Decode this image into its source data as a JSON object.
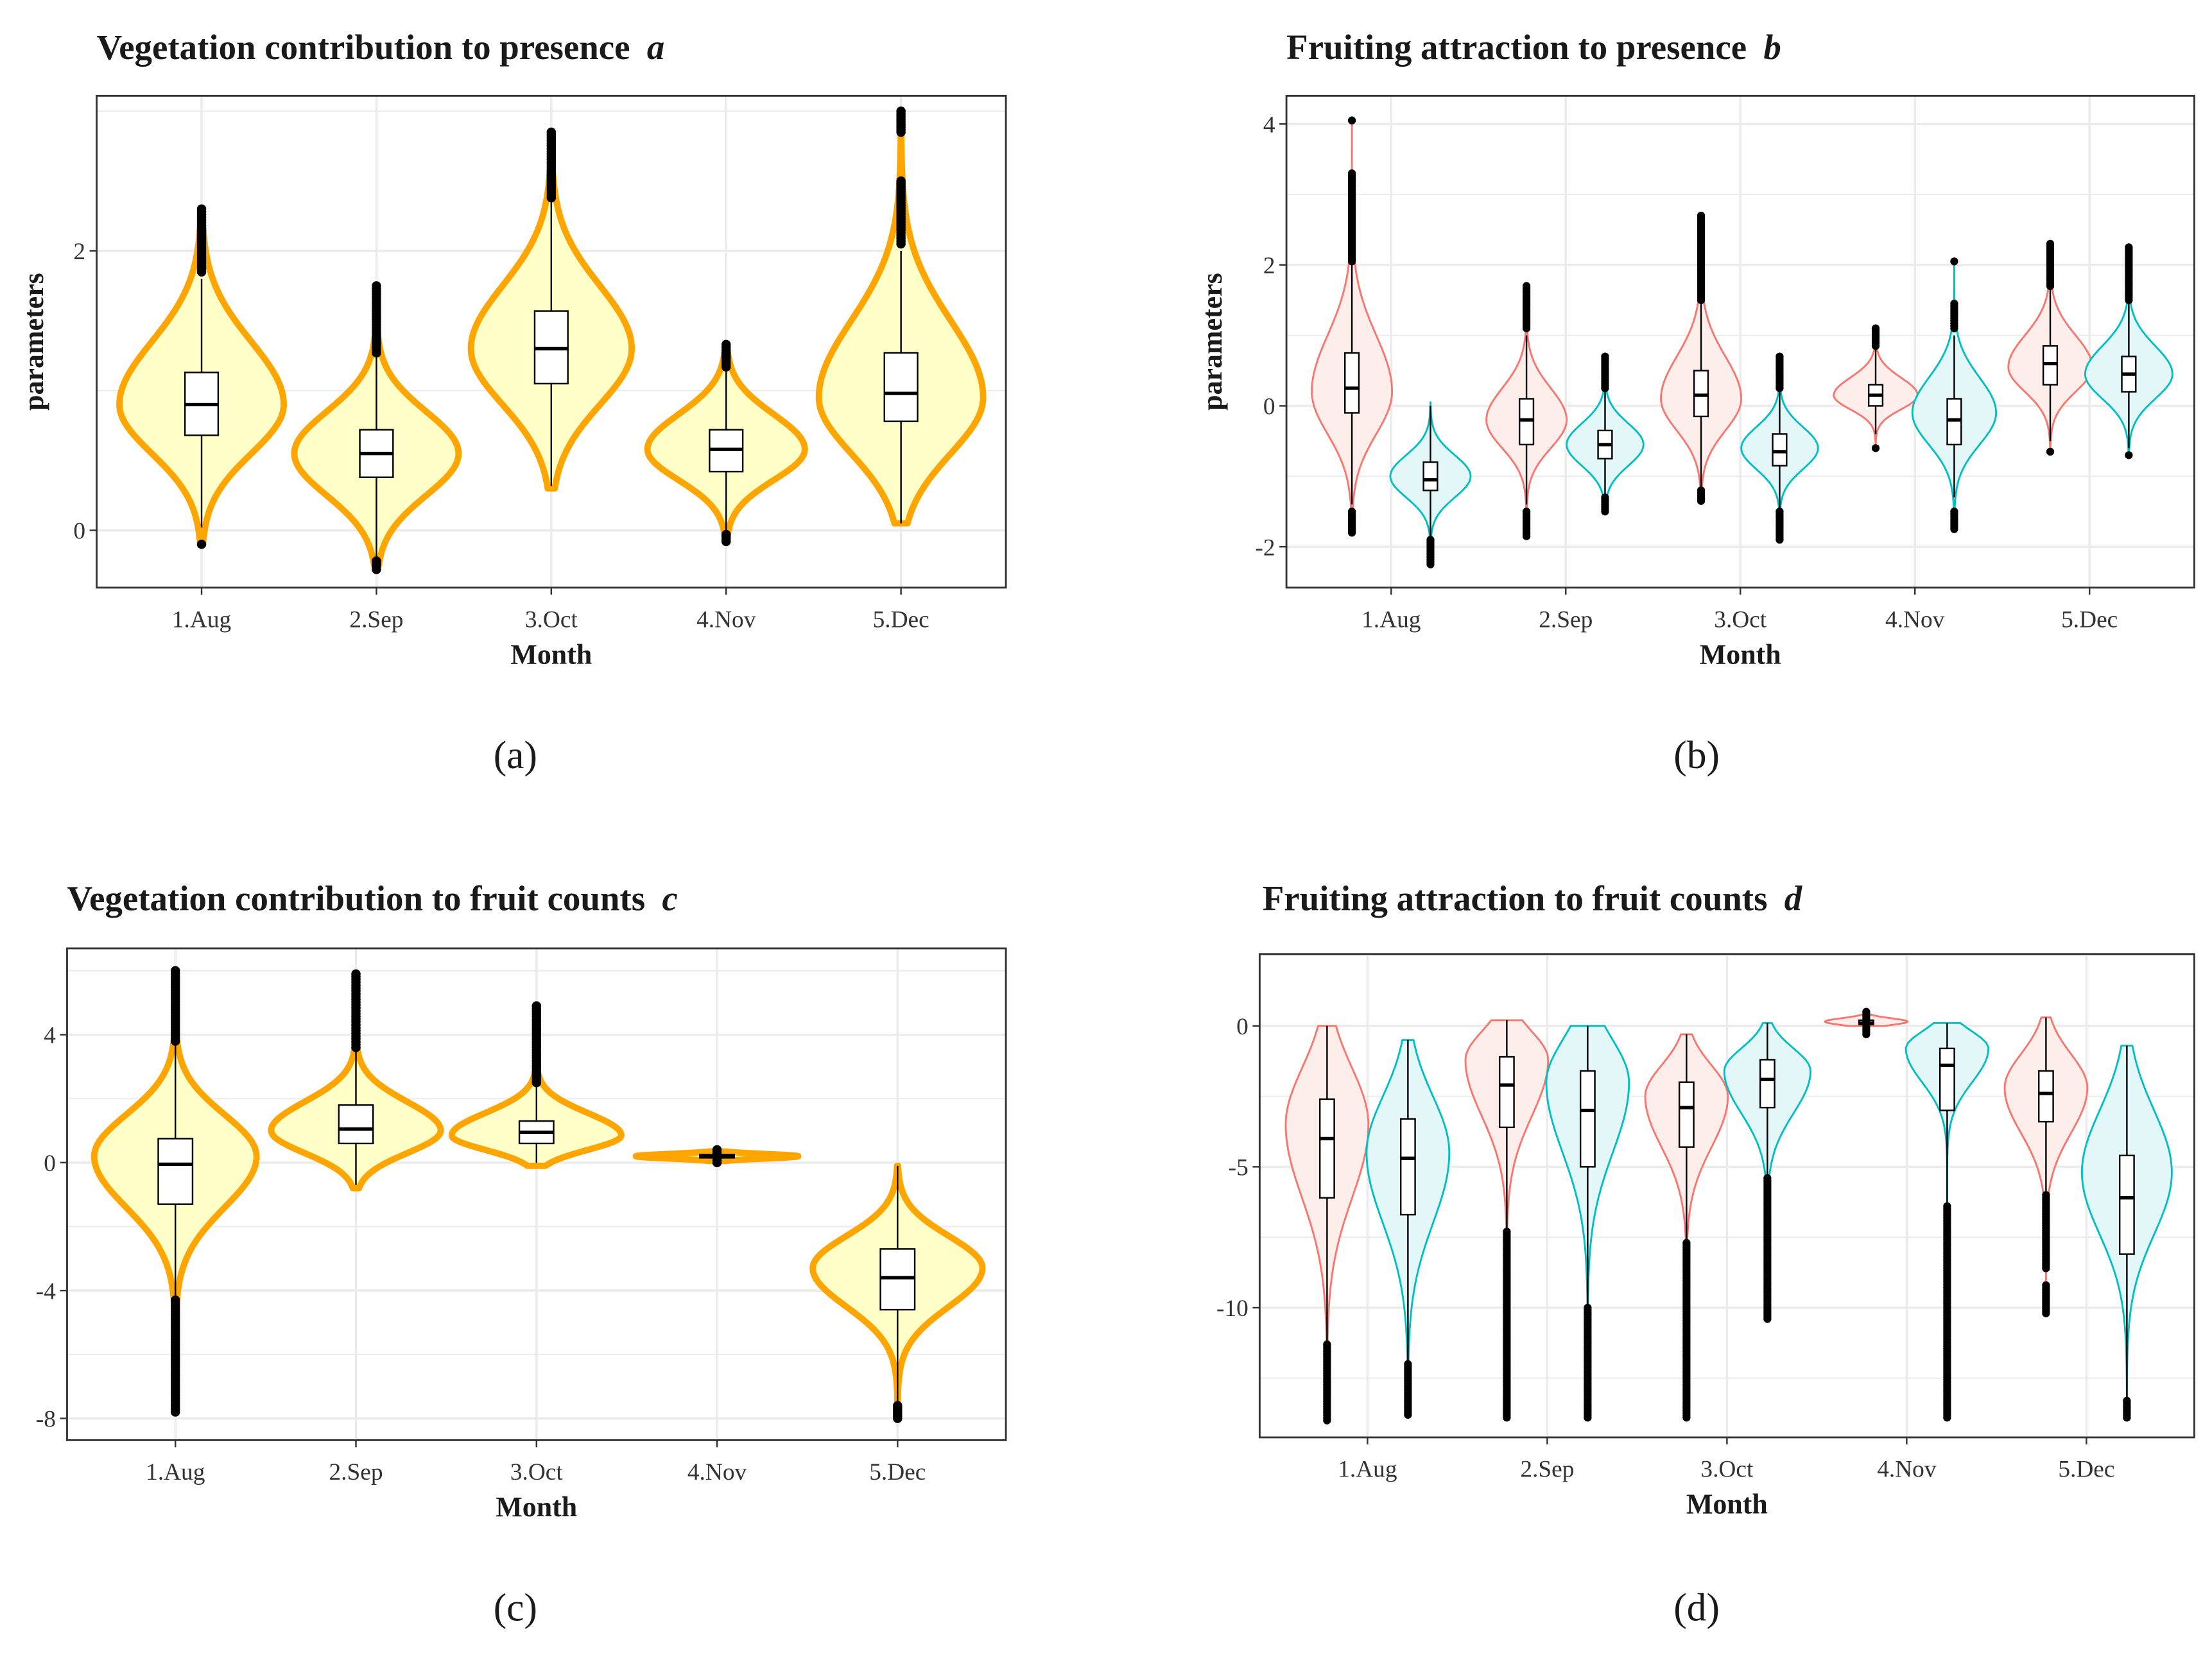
{
  "colors": {
    "orange_line": "#FFA500",
    "orange_fill": "#FFFFC8",
    "series_a_line": "#F8766D",
    "series_a_fill": "#FDEDEB",
    "series_b_line": "#00BFC4",
    "series_b_fill": "#E3F7F8",
    "grid": "#EBEBEB",
    "border": "#333333"
  },
  "chart_data": [
    {
      "id": "a",
      "type": "violin",
      "title": "Vegetation contribution to presence",
      "panel_letter": "a",
      "caption": "(a)",
      "xlabel": "Month",
      "ylabel": "parameters",
      "categories": [
        "1.Aug",
        "2.Sep",
        "3.Oct",
        "4.Nov",
        "5.Dec"
      ],
      "yticks": [
        0,
        2
      ],
      "ytick_labels": [
        "0",
        "2"
      ],
      "ylim": [
        -0.41,
        3.11
      ],
      "grid": true,
      "style": "single",
      "violins": [
        {
          "cat": 0,
          "group": "single",
          "min": -0.1,
          "max": 2.3,
          "mode": 0.9,
          "sd_up": 0.45,
          "sd_down": 0.35,
          "rel_width": 0.47,
          "q1": 0.68,
          "median": 0.9,
          "q3": 1.13,
          "whisker_low": 0.02,
          "whisker_high": 1.8,
          "outliers": [
            [
              1.85,
              2.3
            ],
            [
              -0.1,
              -0.1
            ]
          ]
        },
        {
          "cat": 1,
          "group": "single",
          "min": -0.25,
          "max": 1.75,
          "mode": 0.55,
          "sd_up": 0.3,
          "sd_down": 0.3,
          "rel_width": 0.47,
          "q1": 0.38,
          "median": 0.55,
          "q3": 0.72,
          "whisker_low": -0.2,
          "whisker_high": 1.25,
          "outliers": [
            [
              1.27,
              1.75
            ],
            [
              -0.28,
              -0.22
            ]
          ]
        },
        {
          "cat": 2,
          "group": "single",
          "min": 0.3,
          "max": 2.85,
          "mode": 1.3,
          "sd_up": 0.45,
          "sd_down": 0.4,
          "rel_width": 0.46,
          "q1": 1.05,
          "median": 1.3,
          "q3": 1.57,
          "whisker_low": 0.32,
          "whisker_high": 2.35,
          "outliers": [
            [
              2.38,
              2.85
            ]
          ]
        },
        {
          "cat": 3,
          "group": "single",
          "min": -0.08,
          "max": 1.33,
          "mode": 0.58,
          "sd_up": 0.25,
          "sd_down": 0.22,
          "rel_width": 0.45,
          "q1": 0.42,
          "median": 0.58,
          "q3": 0.72,
          "whisker_low": -0.02,
          "whisker_high": 1.15,
          "outliers": [
            [
              1.17,
              1.33
            ],
            [
              -0.08,
              -0.03
            ]
          ]
        },
        {
          "cat": 4,
          "group": "single",
          "min": 0.05,
          "max": 3.0,
          "mode": 0.95,
          "sd_up": 0.55,
          "sd_down": 0.4,
          "rel_width": 0.47,
          "q1": 0.78,
          "median": 0.98,
          "q3": 1.27,
          "whisker_low": 0.05,
          "whisker_high": 2.0,
          "outliers": [
            [
              2.05,
              2.5
            ],
            [
              2.85,
              3.0
            ]
          ]
        }
      ]
    },
    {
      "id": "b",
      "type": "violin",
      "title": "Fruiting attraction to presence",
      "panel_letter": "b",
      "caption": "(b)",
      "xlabel": "Month",
      "ylabel": "parameters",
      "categories": [
        "1.Aug",
        "2.Sep",
        "3.Oct",
        "4.Nov",
        "5.Dec"
      ],
      "yticks": [
        -2,
        0,
        2,
        4
      ],
      "ytick_labels": [
        "-2",
        "0",
        "2",
        "4"
      ],
      "ylim": [
        -2.58,
        4.4
      ],
      "grid": true,
      "style": "paired",
      "violins": [
        {
          "cat": 0,
          "group": "A",
          "min": -1.8,
          "max": 4.1,
          "mode": 0.2,
          "sd_up": 0.8,
          "sd_down": 0.6,
          "rel_width": 0.23,
          "q1": -0.1,
          "median": 0.25,
          "q3": 0.75,
          "whisker_low": -1.4,
          "whisker_high": 2.0,
          "outliers": [
            [
              2.05,
              3.3
            ],
            [
              4.05,
              4.05
            ],
            [
              -1.8,
              -1.5
            ]
          ]
        },
        {
          "cat": 0,
          "group": "B",
          "min": -2.25,
          "max": 0.05,
          "mode": -1.0,
          "sd_up": 0.3,
          "sd_down": 0.3,
          "rel_width": 0.23,
          "q1": -1.2,
          "median": -1.05,
          "q3": -0.8,
          "whisker_low": -1.85,
          "whisker_high": 0.0,
          "outliers": [
            [
              -2.25,
              -1.9
            ]
          ]
        },
        {
          "cat": 1,
          "group": "A",
          "min": -1.85,
          "max": 1.7,
          "mode": -0.2,
          "sd_up": 0.45,
          "sd_down": 0.4,
          "rel_width": 0.23,
          "q1": -0.55,
          "median": -0.2,
          "q3": 0.1,
          "whisker_low": -1.4,
          "whisker_high": 1.0,
          "outliers": [
            [
              1.1,
              1.7
            ],
            [
              -1.85,
              -1.5
            ]
          ]
        },
        {
          "cat": 1,
          "group": "B",
          "min": -1.5,
          "max": 0.7,
          "mode": -0.55,
          "sd_up": 0.3,
          "sd_down": 0.3,
          "rel_width": 0.22,
          "q1": -0.75,
          "median": -0.55,
          "q3": -0.35,
          "whisker_low": -1.3,
          "whisker_high": 0.2,
          "outliers": [
            [
              0.25,
              0.7
            ],
            [
              -1.5,
              -1.3
            ]
          ]
        },
        {
          "cat": 2,
          "group": "A",
          "min": -1.35,
          "max": 2.7,
          "mode": 0.1,
          "sd_up": 0.6,
          "sd_down": 0.45,
          "rel_width": 0.23,
          "q1": -0.15,
          "median": 0.15,
          "q3": 0.5,
          "whisker_low": -1.2,
          "whisker_high": 1.5,
          "outliers": [
            [
              1.5,
              2.7
            ],
            [
              -1.35,
              -1.2
            ]
          ]
        },
        {
          "cat": 2,
          "group": "B",
          "min": -1.9,
          "max": 0.7,
          "mode": -0.6,
          "sd_up": 0.3,
          "sd_down": 0.3,
          "rel_width": 0.22,
          "q1": -0.85,
          "median": -0.65,
          "q3": -0.4,
          "whisker_low": -1.5,
          "whisker_high": 0.2,
          "outliers": [
            [
              0.25,
              0.7
            ],
            [
              -1.9,
              -1.5
            ]
          ]
        },
        {
          "cat": 3,
          "group": "A",
          "min": -0.6,
          "max": 1.1,
          "mode": 0.15,
          "sd_up": 0.25,
          "sd_down": 0.2,
          "rel_width": 0.24,
          "q1": 0.0,
          "median": 0.15,
          "q3": 0.3,
          "whisker_low": -0.4,
          "whisker_high": 0.8,
          "outliers": [
            [
              0.85,
              1.1
            ],
            [
              -0.6,
              -0.6
            ]
          ]
        },
        {
          "cat": 3,
          "group": "B",
          "min": -1.75,
          "max": 2.05,
          "mode": -0.1,
          "sd_up": 0.5,
          "sd_down": 0.45,
          "rel_width": 0.24,
          "q1": -0.55,
          "median": -0.2,
          "q3": 0.1,
          "whisker_low": -1.3,
          "whisker_high": 1.0,
          "outliers": [
            [
              1.1,
              1.45
            ],
            [
              2.05,
              2.05
            ],
            [
              -1.75,
              -1.5
            ]
          ]
        },
        {
          "cat": 4,
          "group": "A",
          "min": -0.65,
          "max": 2.3,
          "mode": 0.55,
          "sd_up": 0.45,
          "sd_down": 0.35,
          "rel_width": 0.24,
          "q1": 0.3,
          "median": 0.6,
          "q3": 0.85,
          "whisker_low": -0.5,
          "whisker_high": 1.65,
          "outliers": [
            [
              1.7,
              2.3
            ],
            [
              -0.65,
              -0.65
            ]
          ]
        },
        {
          "cat": 4,
          "group": "B",
          "min": -0.7,
          "max": 2.25,
          "mode": 0.45,
          "sd_up": 0.4,
          "sd_down": 0.35,
          "rel_width": 0.25,
          "q1": 0.2,
          "median": 0.45,
          "q3": 0.7,
          "whisker_low": -0.6,
          "whisker_high": 1.5,
          "outliers": [
            [
              1.5,
              2.25
            ],
            [
              -0.7,
              -0.7
            ]
          ]
        }
      ]
    },
    {
      "id": "c",
      "type": "violin",
      "title": "Vegetation contribution to fruit counts",
      "panel_letter": "c",
      "caption": "(c)",
      "xlabel": "Month",
      "ylabel": "",
      "categories": [
        "1.Aug",
        "2.Sep",
        "3.Oct",
        "4.Nov",
        "5.Dec"
      ],
      "yticks": [
        -8,
        -4,
        0,
        4
      ],
      "ytick_labels": [
        "-8",
        "-4",
        "0",
        "4"
      ],
      "ylim": [
        -8.68,
        6.7
      ],
      "grid": true,
      "style": "single",
      "violins": [
        {
          "cat": 0,
          "group": "single",
          "min": -7.8,
          "max": 6.0,
          "mode": 0.2,
          "sd_up": 1.3,
          "sd_down": 1.6,
          "rel_width": 0.45,
          "q1": -1.3,
          "median": -0.05,
          "q3": 0.75,
          "whisker_low": -4.3,
          "whisker_high": 3.7,
          "outliers": [
            [
              3.8,
              6.0
            ],
            [
              -7.8,
              -4.3
            ]
          ]
        },
        {
          "cat": 1,
          "group": "single",
          "min": -0.8,
          "max": 5.9,
          "mode": 1.0,
          "sd_up": 0.9,
          "sd_down": 0.7,
          "rel_width": 0.47,
          "q1": 0.6,
          "median": 1.05,
          "q3": 1.8,
          "whisker_low": -0.7,
          "whisker_high": 3.5,
          "outliers": [
            [
              3.6,
              5.9
            ]
          ]
        },
        {
          "cat": 2,
          "group": "single",
          "min": -0.1,
          "max": 4.9,
          "mode": 0.85,
          "sd_up": 0.7,
          "sd_down": 0.45,
          "rel_width": 0.47,
          "q1": 0.6,
          "median": 0.95,
          "q3": 1.3,
          "whisker_low": 0.0,
          "whisker_high": 2.4,
          "outliers": [
            [
              2.5,
              4.9
            ]
          ]
        },
        {
          "cat": 3,
          "group": "single",
          "min": 0.05,
          "max": 0.35,
          "mode": 0.2,
          "sd_up": 0.07,
          "sd_down": 0.07,
          "rel_width": 0.45,
          "q1": 0.15,
          "median": 0.2,
          "q3": 0.25,
          "whisker_low": 0.05,
          "whisker_high": 0.35,
          "outliers": [
            [
              0.0,
              0.4
            ]
          ]
        },
        {
          "cat": 4,
          "group": "single",
          "min": -8.0,
          "max": -0.1,
          "mode": -3.3,
          "sd_up": 1.0,
          "sd_down": 1.2,
          "rel_width": 0.47,
          "q1": -4.6,
          "median": -3.6,
          "q3": -2.7,
          "whisker_low": -7.5,
          "whisker_high": -0.1,
          "outliers": [
            [
              -8.0,
              -7.6
            ]
          ]
        }
      ]
    },
    {
      "id": "d",
      "type": "violin",
      "title": "Fruiting attraction to fruit counts",
      "panel_letter": "d",
      "caption": "(d)",
      "xlabel": "Month",
      "ylabel": "",
      "categories": [
        "1.Aug",
        "2.Sep",
        "3.Oct",
        "4.Nov",
        "5.Dec"
      ],
      "yticks": [
        -10,
        -5,
        0
      ],
      "ytick_labels": [
        "-10",
        "-5",
        "0"
      ],
      "ylim": [
        -14.6,
        2.55
      ],
      "grid": true,
      "style": "paired",
      "violins": [
        {
          "cat": 0,
          "group": "A",
          "min": -14.0,
          "max": 0.0,
          "mode": -3.5,
          "sd_up": 2.0,
          "sd_down": 2.6,
          "rel_width": 0.23,
          "q1": -6.1,
          "median": -4.0,
          "q3": -2.6,
          "whisker_low": -11.2,
          "whisker_high": 0.0,
          "outliers": [
            [
              -14.0,
              -11.3
            ]
          ]
        },
        {
          "cat": 0,
          "group": "B",
          "min": -13.8,
          "max": -0.5,
          "mode": -4.5,
          "sd_up": 2.0,
          "sd_down": 2.5,
          "rel_width": 0.23,
          "q1": -6.7,
          "median": -4.7,
          "q3": -3.3,
          "whisker_low": -11.9,
          "whisker_high": -0.5,
          "outliers": [
            [
              -13.8,
              -12.0
            ]
          ]
        },
        {
          "cat": 1,
          "group": "A",
          "min": -13.9,
          "max": 0.2,
          "mode": -1.2,
          "sd_up": 1.0,
          "sd_down": 2.0,
          "rel_width": 0.23,
          "q1": -3.6,
          "median": -2.1,
          "q3": -1.1,
          "whisker_low": -7.3,
          "whisker_high": 0.2,
          "outliers": [
            [
              -13.9,
              -7.3
            ]
          ]
        },
        {
          "cat": 1,
          "group": "B",
          "min": -13.9,
          "max": 0.0,
          "mode": -2.0,
          "sd_up": 1.5,
          "sd_down": 2.5,
          "rel_width": 0.23,
          "q1": -5.0,
          "median": -3.0,
          "q3": -1.6,
          "whisker_low": -10.0,
          "whisker_high": 0.0,
          "outliers": [
            [
              -13.9,
              -10.0
            ]
          ]
        },
        {
          "cat": 2,
          "group": "A",
          "min": -13.9,
          "max": -0.3,
          "mode": -2.5,
          "sd_up": 1.1,
          "sd_down": 1.8,
          "rel_width": 0.23,
          "q1": -4.3,
          "median": -2.9,
          "q3": -2.0,
          "whisker_low": -7.7,
          "whisker_high": -0.3,
          "outliers": [
            [
              -13.9,
              -7.7
            ]
          ]
        },
        {
          "cat": 2,
          "group": "B",
          "min": -10.4,
          "max": 0.1,
          "mode": -1.6,
          "sd_up": 0.8,
          "sd_down": 1.5,
          "rel_width": 0.24,
          "q1": -2.9,
          "median": -1.9,
          "q3": -1.2,
          "whisker_low": -5.4,
          "whisker_high": 0.1,
          "outliers": [
            [
              -10.4,
              -5.4
            ]
          ]
        },
        {
          "cat": 3,
          "group": "A",
          "min": 0.0,
          "max": 0.4,
          "mode": 0.15,
          "sd_up": 0.12,
          "sd_down": 0.12,
          "rel_width": 0.23,
          "q1": 0.05,
          "median": 0.1,
          "q3": 0.2,
          "whisker_low": 0.0,
          "whisker_high": 0.4,
          "outliers": [
            [
              -0.3,
              0.5
            ]
          ]
        },
        {
          "cat": 3,
          "group": "B",
          "min": -13.9,
          "max": 0.1,
          "mode": -0.8,
          "sd_up": 0.6,
          "sd_down": 1.2,
          "rel_width": 0.23,
          "q1": -3.0,
          "median": -1.4,
          "q3": -0.8,
          "whisker_low": -6.4,
          "whisker_high": 0.1,
          "outliers": [
            [
              -13.9,
              -6.4
            ]
          ]
        },
        {
          "cat": 4,
          "group": "A",
          "min": -10.2,
          "max": 0.3,
          "mode": -2.2,
          "sd_up": 1.2,
          "sd_down": 1.6,
          "rel_width": 0.23,
          "q1": -3.4,
          "median": -2.4,
          "q3": -1.6,
          "whisker_low": -6.0,
          "whisker_high": 0.3,
          "outliers": [
            [
              -8.6,
              -6.0
            ],
            [
              -10.2,
              -9.2
            ]
          ]
        },
        {
          "cat": 4,
          "group": "B",
          "min": -13.9,
          "max": -0.7,
          "mode": -5.2,
          "sd_up": 2.2,
          "sd_down": 2.2,
          "rel_width": 0.25,
          "q1": -8.1,
          "median": -6.1,
          "q3": -4.6,
          "whisker_low": -13.2,
          "whisker_high": -0.7,
          "outliers": [
            [
              -13.9,
              -13.3
            ]
          ]
        }
      ]
    }
  ]
}
